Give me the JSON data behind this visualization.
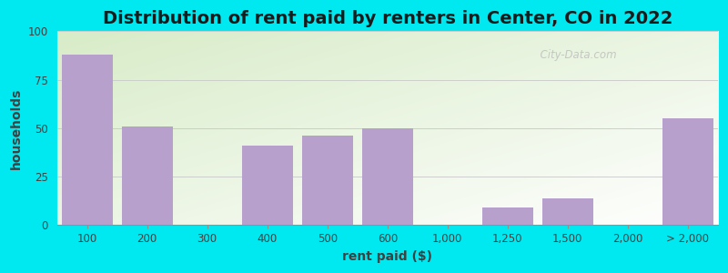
{
  "title": "Distribution of rent paid by renters in Center, CO in 2022",
  "xlabel": "rent paid ($)",
  "ylabel": "households",
  "bar_color": "#b8a0cc",
  "bar_heights": [
    88,
    51,
    0,
    41,
    46,
    50,
    0,
    9,
    14,
    0,
    55
  ],
  "bar_centers": [
    0,
    1,
    2,
    3,
    4,
    5,
    6,
    7,
    8,
    9,
    10
  ],
  "ylim": [
    0,
    100
  ],
  "yticks": [
    0,
    25,
    50,
    75,
    100
  ],
  "xtick_labels": [
    "100",
    "200",
    "300",
    "400",
    "500",
    "600",
    "1,000",
    "1,250",
    "1,500",
    "2,000",
    "> 2,000"
  ],
  "background_outer": "#00e8f0",
  "title_fontsize": 14,
  "axis_label_fontsize": 10,
  "tick_fontsize": 8.5,
  "watermark_text": "  City-Data.com"
}
